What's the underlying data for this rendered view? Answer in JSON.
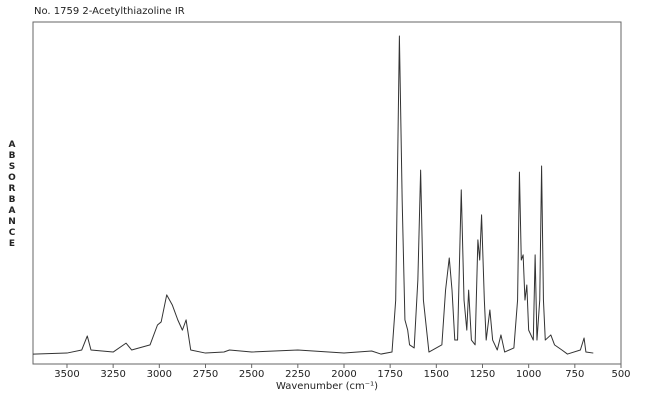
{
  "chart_data": {
    "type": "line",
    "title": "No. 1759  2-Acetylthiazoline IR",
    "x_label": "Wavenumber (cm⁻¹)",
    "y_label": "ABSORBANCE",
    "xlim": [
      3684,
      500
    ],
    "ylim": [
      0,
      100
    ],
    "xticks": [
      3500,
      3250,
      3000,
      2750,
      2500,
      2250,
      2000,
      1750,
      1500,
      1250,
      1000,
      750,
      500
    ],
    "series": [
      {
        "name": "2-Acetylthiazoline",
        "color": "#333333",
        "x": [
          3684,
          3500,
          3420,
          3390,
          3370,
          3250,
          3180,
          3150,
          3050,
          3010,
          2990,
          2960,
          2930,
          2900,
          2875,
          2855,
          2830,
          2750,
          2650,
          2620,
          2500,
          2250,
          2000,
          1850,
          1800,
          1740,
          1720,
          1700,
          1685,
          1670,
          1655,
          1645,
          1620,
          1600,
          1585,
          1570,
          1540,
          1470,
          1450,
          1430,
          1415,
          1400,
          1385,
          1365,
          1350,
          1335,
          1325,
          1310,
          1290,
          1275,
          1265,
          1255,
          1240,
          1230,
          1210,
          1195,
          1170,
          1150,
          1130,
          1080,
          1060,
          1050,
          1040,
          1030,
          1020,
          1010,
          1000,
          975,
          965,
          955,
          940,
          930,
          920,
          910,
          880,
          860,
          820,
          790,
          720,
          700,
          690,
          650
        ],
        "values": [
          2.9,
          3.2,
          4.1,
          8.2,
          4.1,
          3.5,
          6.1,
          4.1,
          5.6,
          11.4,
          12.3,
          20.2,
          17.3,
          12.9,
          9.9,
          12.9,
          4.1,
          3.2,
          3.5,
          4.1,
          3.5,
          4.1,
          3.2,
          3.8,
          2.9,
          3.5,
          18.7,
          95.9,
          48.0,
          12.9,
          9.9,
          5.6,
          4.7,
          24.6,
          56.7,
          18.7,
          3.5,
          5.6,
          21.6,
          31.0,
          21.6,
          7.0,
          7.0,
          50.9,
          18.7,
          9.9,
          21.6,
          7.0,
          5.6,
          36.3,
          30.4,
          43.6,
          18.7,
          7.0,
          15.8,
          7.0,
          4.1,
          8.5,
          3.5,
          4.7,
          18.7,
          56.1,
          30.4,
          31.9,
          18.7,
          23.1,
          9.9,
          7.0,
          31.9,
          7.0,
          18.7,
          57.9,
          18.7,
          7.0,
          8.5,
          5.6,
          4.1,
          2.9,
          4.1,
          7.6,
          3.5,
          3.2
        ]
      }
    ]
  }
}
